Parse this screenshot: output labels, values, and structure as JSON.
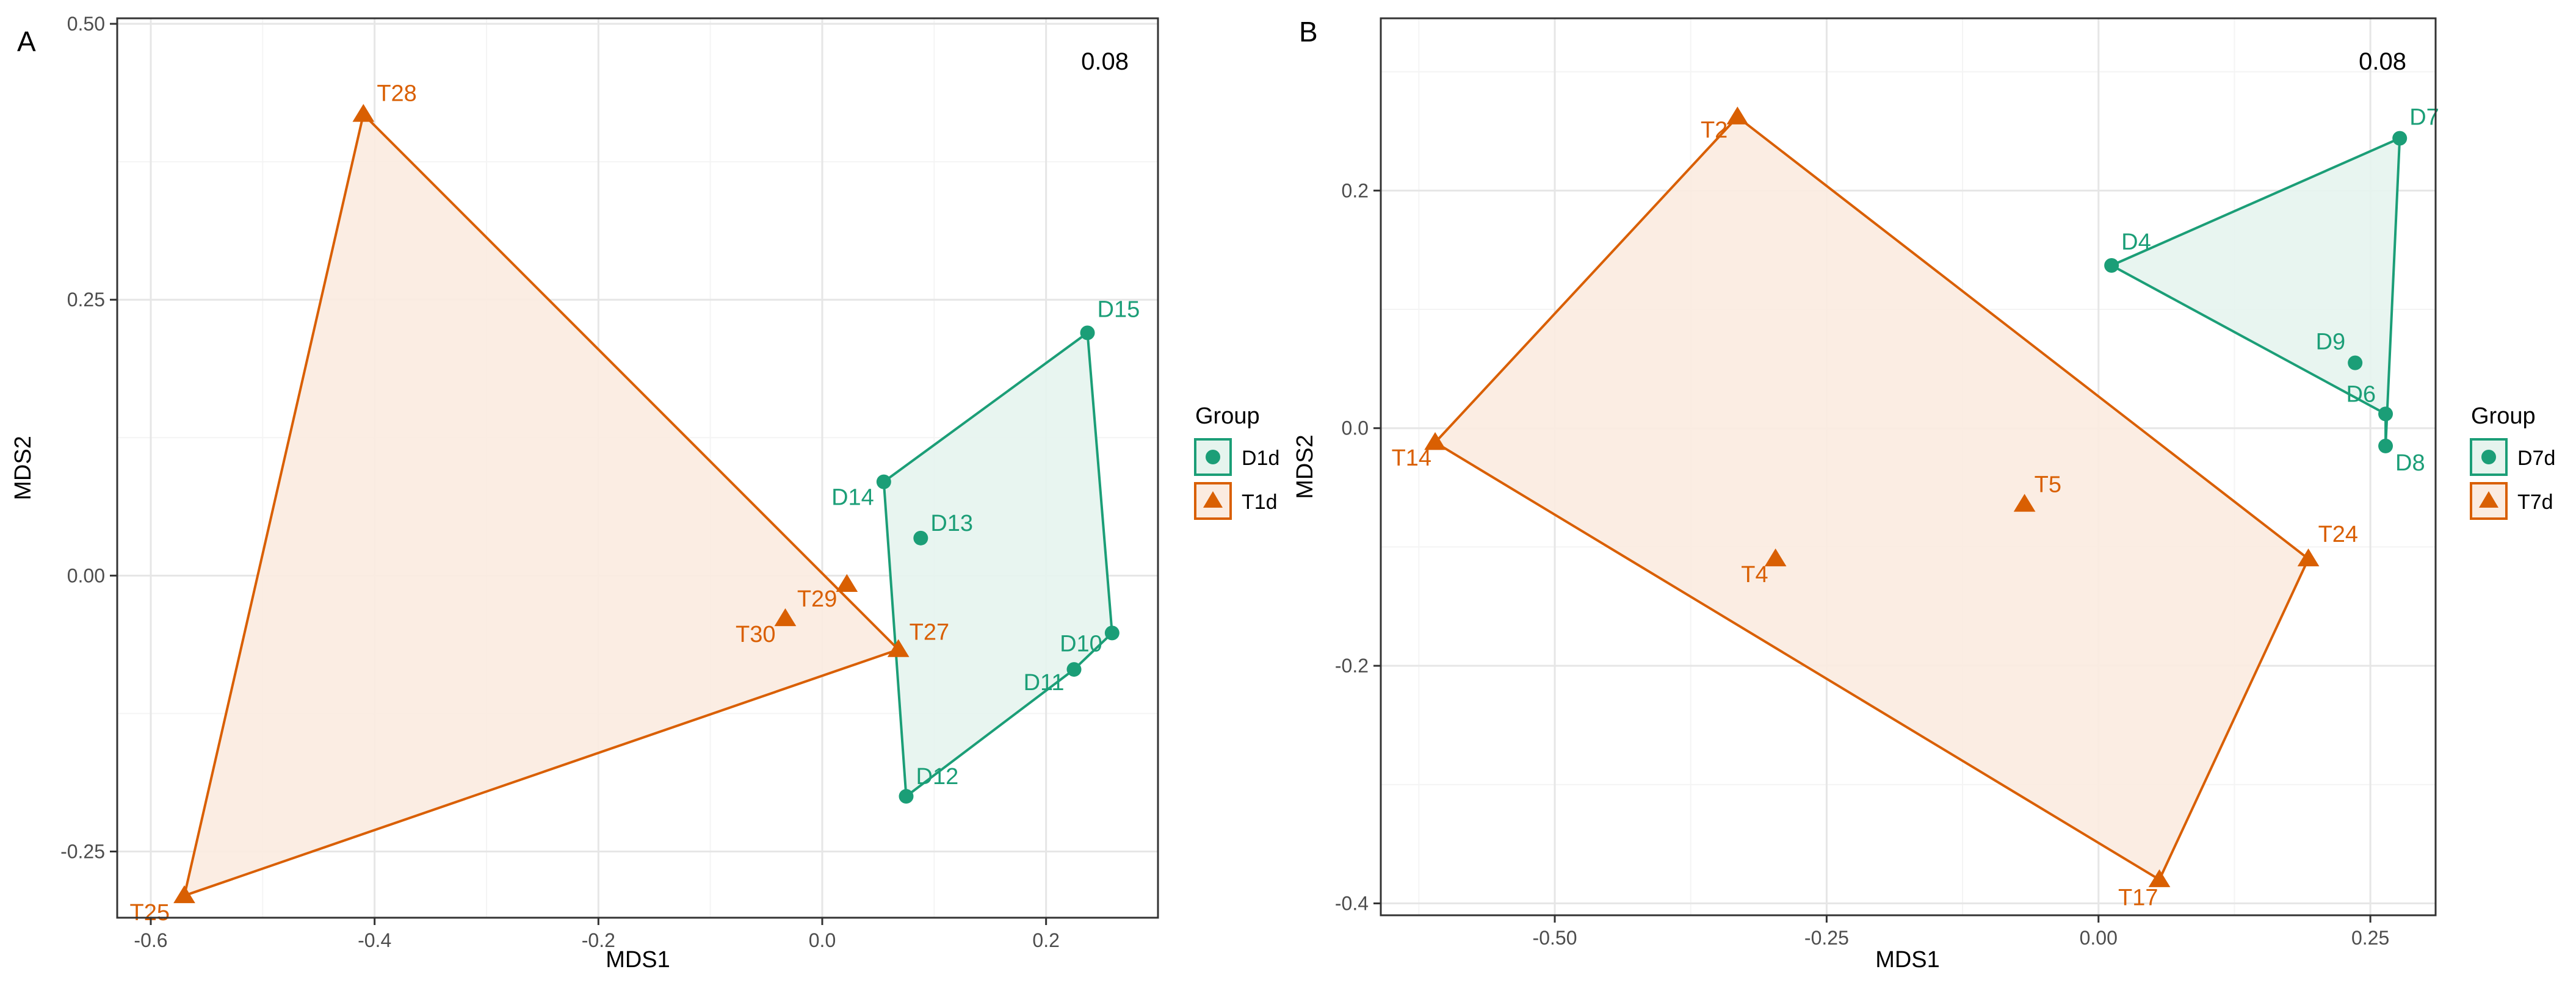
{
  "colors": {
    "d_group": "#1b9e77",
    "t_group": "#d95f02",
    "d_fill": "#e6f4ee",
    "t_fill": "#fbebe0",
    "grid_major": "#e6e6e6",
    "grid_minor": "#f4f4f4",
    "frame": "#333333",
    "text": "#000000",
    "tick_text": "#4d4d4d"
  },
  "chart_data": [
    {
      "type": "scatter",
      "panel_label": "A",
      "stress_label": "0.08",
      "xlabel": "MDS1",
      "ylabel": "MDS2",
      "xlim": [
        -0.63,
        0.3
      ],
      "ylim": [
        -0.31,
        0.505
      ],
      "xticks": [
        -0.6,
        -0.4,
        -0.2,
        0.0,
        0.2
      ],
      "xtick_labels": [
        "-0.6",
        "-0.4",
        "-0.2",
        "0.0",
        "0.2"
      ],
      "yticks": [
        -0.25,
        0.0,
        0.25,
        0.5
      ],
      "ytick_labels": [
        "-0.25",
        "0.00",
        "0.25",
        "0.50"
      ],
      "legend": {
        "title": "Group",
        "position": "right",
        "entries": [
          {
            "label": "D1d",
            "series": "D"
          },
          {
            "label": "T1d",
            "series": "T"
          }
        ]
      },
      "series": [
        {
          "name": "D1d",
          "key": "D",
          "marker": "circle",
          "points": [
            {
              "label": "D15",
              "x": 0.237,
              "y": 0.22,
              "anchor": "start"
            },
            {
              "label": "D14",
              "x": 0.055,
              "y": 0.085,
              "anchor": "end"
            },
            {
              "label": "D13",
              "x": 0.088,
              "y": 0.034,
              "anchor": "start"
            },
            {
              "label": "D10",
              "x": 0.259,
              "y": -0.052,
              "anchor": "end"
            },
            {
              "label": "D11",
              "x": 0.225,
              "y": -0.085,
              "anchor": "end"
            },
            {
              "label": "D12",
              "x": 0.075,
              "y": -0.2,
              "anchor": "start"
            }
          ],
          "hull": [
            "D15",
            "D10",
            "D11",
            "D12",
            "D14"
          ]
        },
        {
          "name": "T1d",
          "key": "T",
          "marker": "triangle",
          "points": [
            {
              "label": "T28",
              "x": -0.41,
              "y": 0.418,
              "anchor": "start"
            },
            {
              "label": "T29",
              "x": 0.022,
              "y": -0.008,
              "anchor": "end"
            },
            {
              "label": "T30",
              "x": -0.033,
              "y": -0.039,
              "anchor": "end"
            },
            {
              "label": "T27",
              "x": 0.068,
              "y": -0.067,
              "anchor": "start"
            },
            {
              "label": "T25",
              "x": -0.57,
              "y": -0.29,
              "anchor": "end"
            }
          ],
          "hull": [
            "T28",
            "T27",
            "T25"
          ]
        }
      ]
    },
    {
      "type": "scatter",
      "panel_label": "B",
      "stress_label": "0.08",
      "xlabel": "MDS1",
      "ylabel": "MDS2",
      "xlim": [
        -0.66,
        0.31
      ],
      "ylim": [
        -0.41,
        0.345
      ],
      "xticks": [
        -0.5,
        -0.25,
        0.0,
        0.25
      ],
      "xtick_labels": [
        "-0.50",
        "-0.25",
        "0.00",
        "0.25"
      ],
      "yticks": [
        -0.4,
        -0.2,
        0.0,
        0.2
      ],
      "ytick_labels": [
        "-0.4",
        "-0.2",
        "0.0",
        "0.2"
      ],
      "legend": {
        "title": "Group",
        "position": "right",
        "entries": [
          {
            "label": "D7d",
            "series": "D"
          },
          {
            "label": "T7d",
            "series": "T"
          }
        ]
      },
      "series": [
        {
          "name": "D7d",
          "key": "D",
          "marker": "circle",
          "points": [
            {
              "label": "D7",
              "x": 0.277,
              "y": 0.244,
              "anchor": "start"
            },
            {
              "label": "D4",
              "x": 0.012,
              "y": 0.137,
              "anchor": "start"
            },
            {
              "label": "D9",
              "x": 0.236,
              "y": 0.055,
              "anchor": "end"
            },
            {
              "label": "D6",
              "x": 0.264,
              "y": 0.012,
              "anchor": "end"
            },
            {
              "label": "D8",
              "x": 0.264,
              "y": -0.015,
              "anchor": "start"
            }
          ],
          "hull": [
            "D7",
            "D8",
            "D6",
            "D4"
          ]
        },
        {
          "name": "T7d",
          "key": "T",
          "marker": "triangle",
          "points": [
            {
              "label": "T2",
              "x": -0.332,
              "y": 0.262,
              "anchor": "end"
            },
            {
              "label": "T14",
              "x": -0.61,
              "y": -0.012,
              "anchor": "end"
            },
            {
              "label": "T5",
              "x": -0.068,
              "y": -0.064,
              "anchor": "start"
            },
            {
              "label": "T4",
              "x": -0.297,
              "y": -0.11,
              "anchor": "end"
            },
            {
              "label": "T24",
              "x": 0.193,
              "y": -0.11,
              "anchor": "start"
            },
            {
              "label": "T17",
              "x": 0.056,
              "y": -0.38,
              "anchor": "end"
            }
          ],
          "hull": [
            "T2",
            "T24",
            "T17",
            "T14"
          ]
        }
      ]
    }
  ]
}
